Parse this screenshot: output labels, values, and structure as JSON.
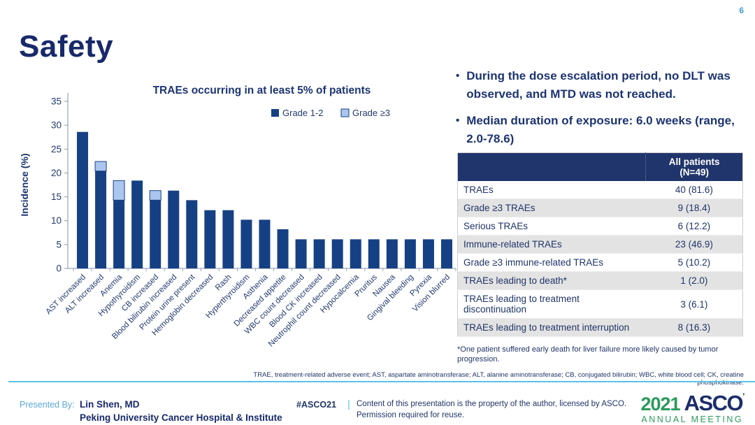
{
  "page": {
    "number": "6"
  },
  "title": "Safety",
  "bullets": [
    "During the dose escalation period, no DLT was observed, and MTD was not reached.",
    "Median duration of exposure: 6.0 weeks (range, 2.0-78.6)"
  ],
  "chart_data": {
    "type": "bar",
    "stacked": true,
    "title": "TRAEs occurring in at least 5% of patients",
    "xlabel": "",
    "ylabel": "Incidence (%)",
    "ylim": [
      0,
      35
    ],
    "ytick_step": 5,
    "grid": false,
    "legend_position": "top-right",
    "categories": [
      "AST increased",
      "ALT increased",
      "Anemia",
      "Hypothyroidism",
      "CB increased",
      "Blood bilirubin increased",
      "Protein urine present",
      "Hemoglobin decreased",
      "Rash",
      "Hyperthyroidism",
      "Asthenia",
      "Decreased appetite",
      "WBC count decreased",
      "Blood CK increased",
      "Neutrophil count decreased",
      "Hypocalcemia",
      "Pruritus",
      "Nausea",
      "Gingival bleeding",
      "Pyrexia",
      "Vision blurred"
    ],
    "series": [
      {
        "name": "Grade 1-2",
        "color": "#164084",
        "values": [
          28.6,
          20.4,
          14.3,
          18.4,
          14.3,
          16.3,
          14.3,
          12.2,
          12.2,
          10.2,
          10.2,
          8.2,
          6.1,
          6.1,
          6.1,
          6.1,
          6.1,
          6.1,
          6.1,
          6.1,
          6.1
        ]
      },
      {
        "name": "Grade ≥3",
        "color": "#abc6ee",
        "values": [
          0,
          2.0,
          4.1,
          0,
          2.0,
          0,
          0,
          0,
          0,
          0,
          0,
          0,
          0,
          0,
          0,
          0,
          0,
          0,
          0,
          0,
          0
        ]
      }
    ]
  },
  "table": {
    "header_col2": [
      "All patients",
      "(N=49)"
    ],
    "rows": [
      [
        "TRAEs",
        "40 (81.6)"
      ],
      [
        "Grade ≥3 TRAEs",
        "9 (18.4)"
      ],
      [
        "Serious TRAEs",
        "6 (12.2)"
      ],
      [
        "Immune-related TRAEs",
        "23 (46.9)"
      ],
      [
        "Grade ≥3 immune-related TRAEs",
        "5 (10.2)"
      ],
      [
        "TRAEs leading to death*",
        "1 (2.0)"
      ],
      [
        "TRAEs leading to treatment discontinuation",
        "3 (6.1)"
      ],
      [
        "TRAEs leading to treatment interruption",
        "8 (16.3)"
      ]
    ],
    "footnote": "*One patient suffered early death for liver failure more likely caused by tumor progression."
  },
  "abbreviations": "TRAE, treatment-related adverse event; AST, aspartate aminotransferase; ALT, alanine aminotransferase; CB, conjugated bilirubin; WBC, white blood cell; CK, creatine phosphokinase.",
  "footer": {
    "presented_by_label": "Presented By:",
    "presenter": "Lin Shen, MD",
    "affiliation": "Peking University Cancer Hospital & Institute",
    "hashtag": "#ASCO21",
    "separator": "|",
    "license_line1": "Content of this presentation is the property of the author, licensed by ASCO.",
    "license_line2": "Permission required for reuse.",
    "logo": {
      "year": "2021",
      "org": "ASCO",
      "meeting": "ANNUAL MEETING"
    }
  },
  "colors": {
    "navy_text": "#1c3472",
    "bar_dark": "#164084",
    "bar_light": "#abc6ee",
    "accent_cyan": "#5bc2e7",
    "accent_blue": "#5aa9d6",
    "logo_green": "#2c9a5c",
    "table_header_bg": "#20356b",
    "table_alt_row": "#e3e3e3",
    "axis_gray": "#9aa7ba"
  }
}
